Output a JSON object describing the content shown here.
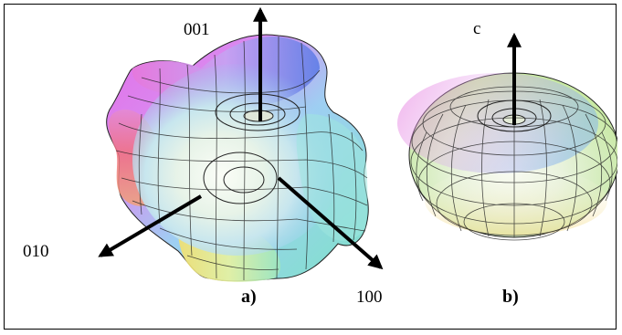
{
  "figure": {
    "panel_a": {
      "label": "a)",
      "axes": {
        "z": "001",
        "y": "010",
        "x": "100"
      }
    },
    "panel_b": {
      "label": "b)",
      "axes": {
        "z": "c"
      }
    }
  },
  "colors": {
    "background": "#ffffff",
    "border": "#000000",
    "arrow": "#000000",
    "mesh": "#1a1a1a",
    "highlight": "#f4f6f0"
  }
}
